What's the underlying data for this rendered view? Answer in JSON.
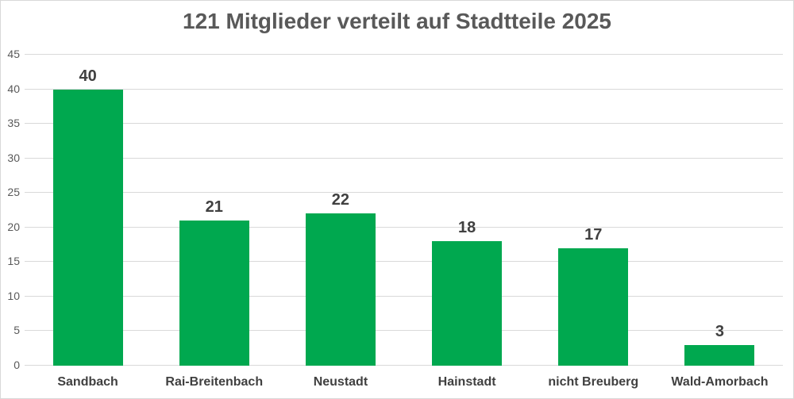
{
  "chart_data": {
    "type": "bar",
    "title": "121 Mitglieder verteilt auf Stadtteile 2025",
    "categories": [
      "Sandbach",
      "Rai-Breitenbach",
      "Neustadt",
      "Hainstadt",
      "nicht Breuberg",
      "Wald-Amorbach"
    ],
    "values": [
      40,
      21,
      22,
      18,
      17,
      3
    ],
    "data_labels": [
      "40",
      "21",
      "22",
      "18",
      "17",
      "3"
    ],
    "total_members": 121,
    "xlabel": "",
    "ylabel": "",
    "ylim": [
      0,
      45
    ],
    "yticks": [
      0,
      5,
      10,
      15,
      20,
      25,
      30,
      35,
      40,
      45
    ],
    "grid": "horizontal-on",
    "legend": "none",
    "colors": {
      "bar": "#00A84F",
      "title": "#595959",
      "value_label": "#404040",
      "category_label": "#404040",
      "axis_tick_label": "#595959",
      "gridline": "#D9D9D9",
      "axis_line": "#D9D9D9",
      "background": "#FFFFFF",
      "chart_border": "#D9D9D9"
    }
  }
}
